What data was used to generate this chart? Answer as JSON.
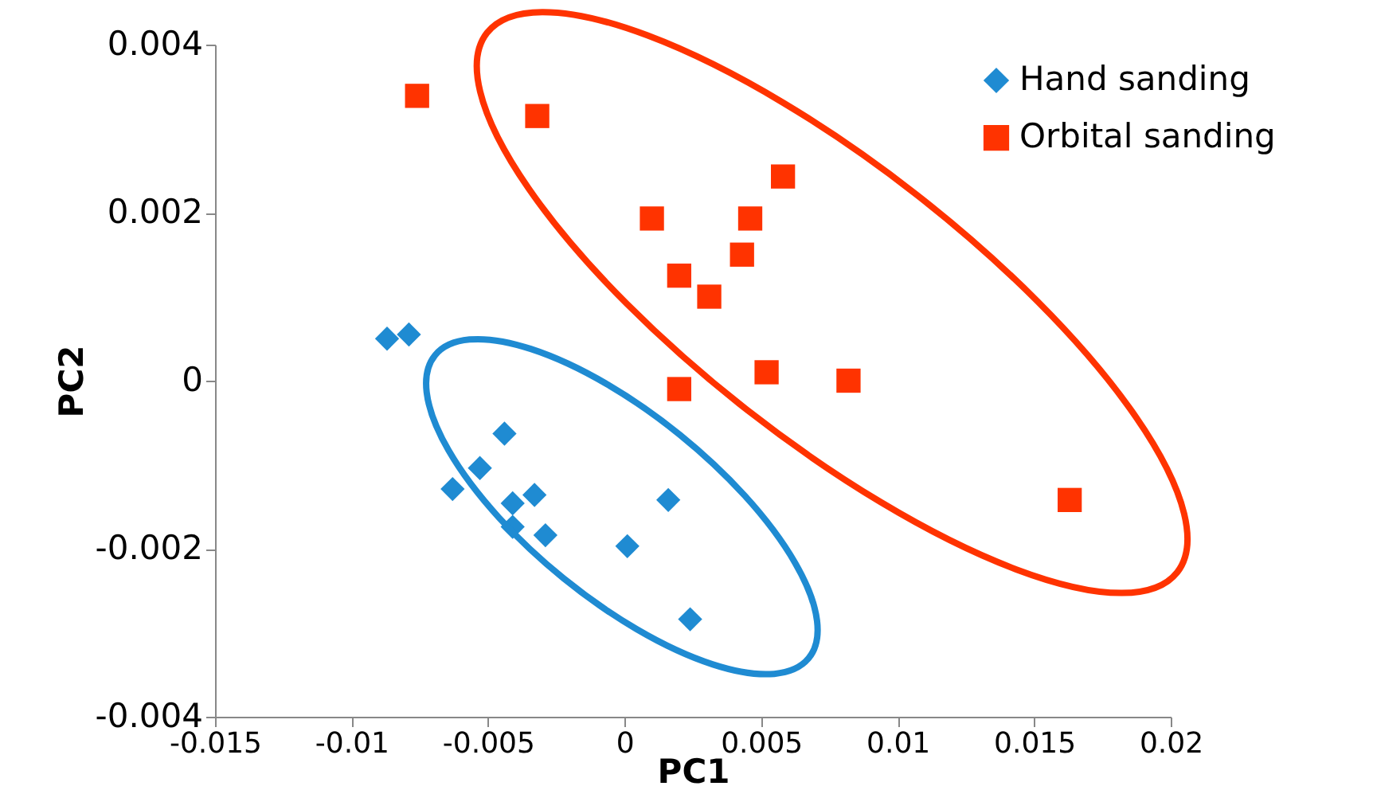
{
  "chart_data": {
    "type": "scatter",
    "xlabel": "PC1",
    "ylabel": "PC2",
    "xlim": [
      -0.015,
      0.02
    ],
    "ylim": [
      -0.004,
      0.004
    ],
    "xticks": [
      -0.015,
      -0.01,
      -0.005,
      0,
      0.005,
      0.01,
      0.015,
      0.02
    ],
    "yticks": [
      -0.004,
      -0.002,
      0,
      0.002,
      0.004
    ],
    "grid": false,
    "legend": "top right",
    "series": [
      {
        "name": "Hand sanding",
        "color": "#1f8bd2",
        "marker": "diamond",
        "x": [
          -0.0087,
          -0.0079,
          -0.0044,
          -0.0053,
          -0.0063,
          -0.0041,
          -0.0033,
          -0.0041,
          -0.0029,
          0.0001,
          0.0016,
          0.0024
        ],
        "values": [
          0.0005,
          0.00055,
          -0.00063,
          -0.00104,
          -0.00129,
          -0.00146,
          -0.00136,
          -0.00174,
          -0.00184,
          -0.00197,
          -0.00142,
          -0.00284
        ]
      },
      {
        "name": "Orbital sanding",
        "color": "#ff3300",
        "marker": "square",
        "x": [
          -0.0076,
          -0.0032,
          0.001,
          0.002,
          0.0031,
          0.0046,
          0.0043,
          0.0058,
          0.002,
          0.0052,
          0.0082,
          0.0163
        ],
        "values": [
          0.00339,
          0.00315,
          0.00193,
          0.00125,
          0.001,
          0.00193,
          0.0015,
          0.00243,
          -0.0001,
          0.0001,
          0,
          -0.00142
        ]
      }
    ]
  }
}
